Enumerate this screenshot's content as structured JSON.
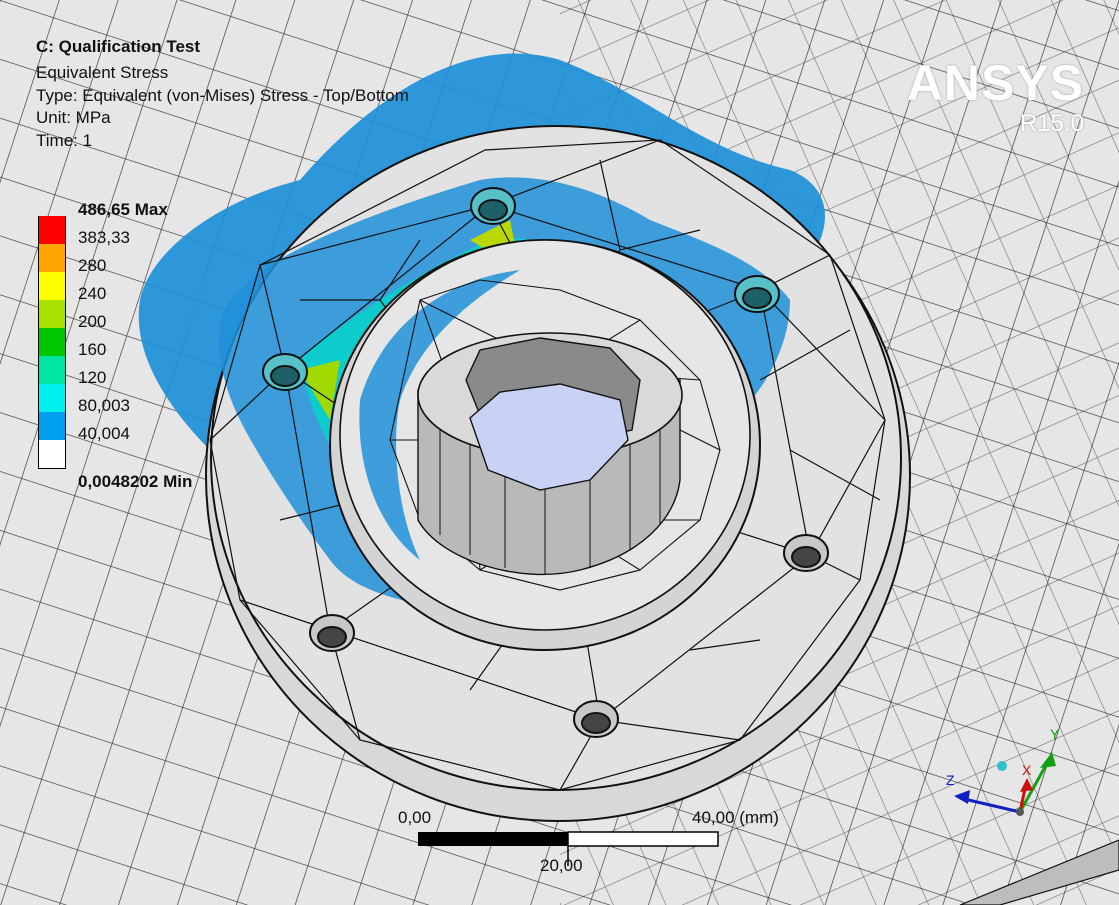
{
  "result_header": {
    "analysis_title": "C: Qualification Test",
    "result_name": "Equivalent Stress",
    "type_line": "Type: Equivalent (von-Mises) Stress - Top/Bottom",
    "unit_line": "Unit: MPa",
    "time_line": "Time: 1"
  },
  "legend": {
    "max_label": "486,65 Max",
    "min_label": "0,0048202 Min",
    "levels": [
      {
        "label": "486,65 Max",
        "color": "#ff0000"
      },
      {
        "label": "383,33",
        "color": "#ffa500"
      },
      {
        "label": "280",
        "color": "#ffff00"
      },
      {
        "label": "240",
        "color": "#a8e000"
      },
      {
        "label": "200",
        "color": "#00c800"
      },
      {
        "label": "160",
        "color": "#00e6a0"
      },
      {
        "label": "120",
        "color": "#00f0f0"
      },
      {
        "label": "80,003",
        "color": "#00a0f0"
      },
      {
        "label": "40,004",
        "color": "#ffffff"
      },
      {
        "label": "0,0048202 Min",
        "color": ""
      }
    ]
  },
  "logo": {
    "brand": "ANSYS",
    "version": "R15.0"
  },
  "scale_bar": {
    "left_label": "0,00",
    "right_label": "40,00 (mm)",
    "mid_label": "20,00"
  },
  "triad": {
    "x_label": "X",
    "y_label": "Y",
    "z_label": "Z",
    "x_color": "#d01010",
    "y_color": "#10a010",
    "z_color": "#1020c0"
  },
  "colors": {
    "mesh_line": "#111111",
    "surface": "#e6e6e6",
    "bore_fill": "#c8d2f4",
    "low_stress": "#1e90d8"
  }
}
